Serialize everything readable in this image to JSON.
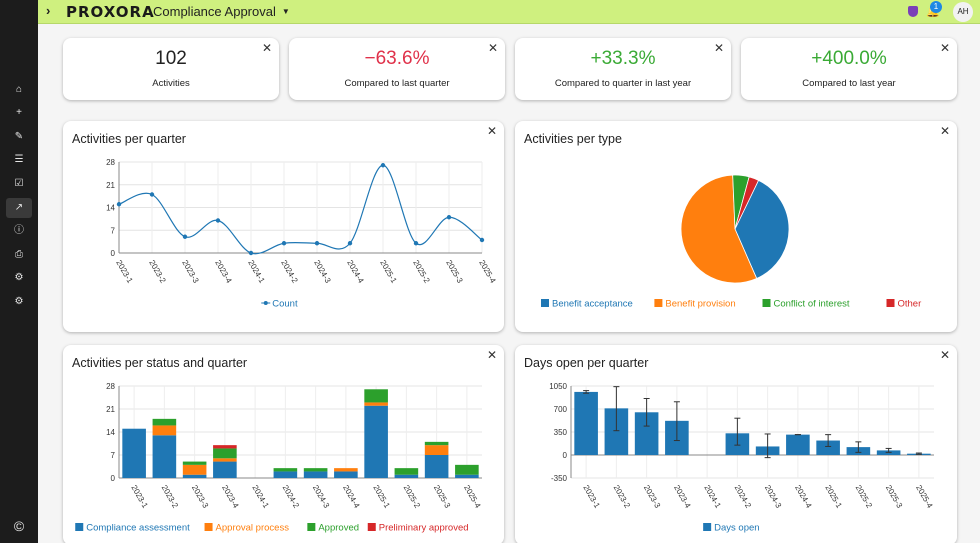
{
  "app": {
    "logo": "PROXORA",
    "title": "Compliance Approval",
    "notification_count": "1",
    "avatar": "AH"
  },
  "colors": {
    "positive": "#3aaa35",
    "negative": "#e0314a",
    "blue": "#1f77b4",
    "orange": "#ff7f0e",
    "green": "#2ca02c",
    "red": "#d62728",
    "topbar": "#cff07f"
  },
  "sidebar": {
    "icons": [
      "home-icon",
      "plus-icon",
      "edit-icon",
      "list-icon",
      "checkbox-icon",
      "chart-icon",
      "info-icon",
      "document-icon",
      "cogs-icon",
      "gear-icon",
      "copyright-icon"
    ]
  },
  "kpis": [
    {
      "value": "102",
      "label": "Activities",
      "tone": "neutral"
    },
    {
      "value": "−63.6%",
      "label": "Compared to last quarter",
      "tone": "negative"
    },
    {
      "value": "+33.3%",
      "label": "Compared to quarter in last year",
      "tone": "positive"
    },
    {
      "value": "+400.0%",
      "label": "Compared to last year",
      "tone": "positive"
    }
  ],
  "chart_data": [
    {
      "type": "line",
      "title": "Activities per quarter",
      "categories": [
        "2023-1",
        "2023-2",
        "2023-3",
        "2023-4",
        "2024-1",
        "2024-2",
        "2024-3",
        "2024-4",
        "2025-1",
        "2025-2",
        "2025-3",
        "2025-4"
      ],
      "series": [
        {
          "name": "Count",
          "values": [
            15,
            18,
            5,
            10,
            0,
            3,
            3,
            3,
            27,
            3,
            11,
            4
          ]
        }
      ],
      "yticks": [
        0,
        7,
        14,
        21,
        28
      ],
      "ylim": [
        0,
        28
      ],
      "grid": true,
      "legend": "bottom"
    },
    {
      "type": "pie",
      "title": "Activities per type",
      "labels": [
        "Benefit acceptance",
        "Benefit provision",
        "Conflict of interest",
        "Other"
      ],
      "values": [
        37,
        57,
        5,
        3
      ],
      "legend": "bottom"
    },
    {
      "type": "bar",
      "title": "Activities per status and quarter",
      "stacked": true,
      "categories": [
        "2023-1",
        "2023-2",
        "2023-3",
        "2023-4",
        "2024-1",
        "2024-2",
        "2024-3",
        "2024-4",
        "2025-1",
        "2025-2",
        "2025-3",
        "2025-4"
      ],
      "series": [
        {
          "name": "Compliance assessment",
          "values": [
            15,
            13,
            1,
            5,
            0,
            2,
            2,
            2,
            22,
            1,
            7,
            1
          ]
        },
        {
          "name": "Approval process",
          "values": [
            0,
            3,
            3,
            1,
            0,
            0,
            0,
            1,
            1,
            0,
            3,
            0
          ]
        },
        {
          "name": "Approved",
          "values": [
            0,
            2,
            1,
            3,
            0,
            1,
            1,
            0,
            4,
            2,
            1,
            3
          ]
        },
        {
          "name": "Preliminary approved",
          "values": [
            0,
            0,
            0,
            1,
            0,
            0,
            0,
            0,
            0,
            0,
            0,
            0
          ]
        }
      ],
      "yticks": [
        0,
        7,
        14,
        21,
        28
      ],
      "ylim": [
        0,
        28
      ],
      "grid": true,
      "legend": "bottom"
    },
    {
      "type": "bar",
      "title": "Days open per quarter",
      "categories": [
        "2023-1",
        "2023-2",
        "2023-3",
        "2023-4",
        "2024-1",
        "2024-2",
        "2024-3",
        "2024-4",
        "2025-1",
        "2025-2",
        "2025-3",
        "2025-4"
      ],
      "series": [
        {
          "name": "Days open",
          "values": [
            960,
            710,
            650,
            520,
            0,
            330,
            130,
            310,
            220,
            120,
            70,
            20
          ]
        }
      ],
      "error_low": [
        940,
        370,
        440,
        220,
        0,
        150,
        -40,
        310,
        130,
        40,
        40,
        10
      ],
      "error_high": [
        980,
        1040,
        860,
        810,
        0,
        560,
        320,
        310,
        310,
        200,
        100,
        30
      ],
      "yticks": [
        -350,
        0,
        350,
        700,
        1050
      ],
      "ylim": [
        -350,
        1050
      ],
      "grid": true,
      "legend": "bottom"
    }
  ]
}
